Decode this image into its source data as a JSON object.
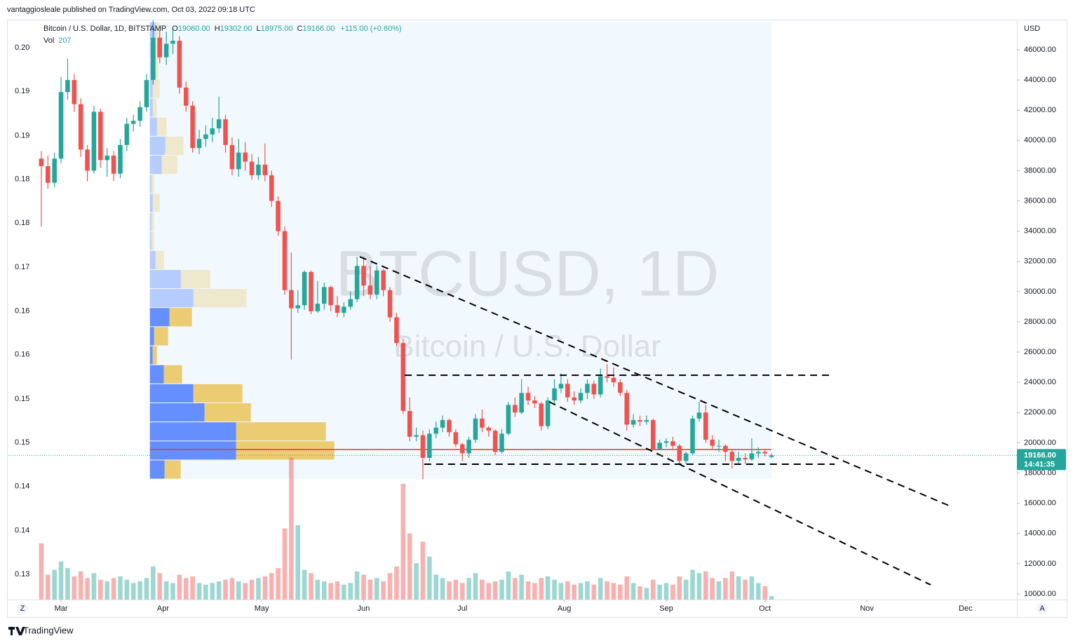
{
  "header": {
    "published": "vantaggiosleale published on TradingView.com, Oct 03, 2022 09:18 UTC",
    "symbol": "Bitcoin / U.S. Dollar, 1D, BITSTAMP",
    "ohlc": [
      {
        "key": "O",
        "value": "19060.00"
      },
      {
        "key": "H",
        "value": "19302.00"
      },
      {
        "key": "L",
        "value": "18975.00"
      },
      {
        "key": "C",
        "value": "19166.00"
      }
    ],
    "change": "+115.00 (+0.60%)"
  },
  "footer": {
    "brand": "TradingView",
    "left_button": "Z",
    "right_button": "A"
  },
  "chart_data": {
    "type": "candlestick",
    "watermark": "BTCUSD, 1D",
    "watermark_sub": "Bitcoin / U.S. Dollar",
    "currency": "USD",
    "volume_label": "Vol",
    "up_color": "#26a69a",
    "down_color": "#ef5350",
    "xlim": [
      44.0,
      350.6
    ],
    "xticks": [
      {
        "value": 60,
        "label": "Mar"
      },
      {
        "value": 91,
        "label": "Apr"
      },
      {
        "value": 121,
        "label": "May"
      },
      {
        "value": 152,
        "label": "Jun"
      },
      {
        "value": 182,
        "label": "Jul"
      },
      {
        "value": 213,
        "label": "Aug"
      },
      {
        "value": 244,
        "label": "Sep"
      },
      {
        "value": 274,
        "label": "Oct"
      },
      {
        "value": 305,
        "label": "Nov"
      },
      {
        "value": 335,
        "label": "Dec"
      }
    ],
    "ylim": [
      9629,
      47902
    ],
    "yticks": [
      {
        "value": 10000,
        "label": "10000.00"
      },
      {
        "value": 12000,
        "label": "12000.00"
      },
      {
        "value": 14000,
        "label": "14000.00"
      },
      {
        "value": 16000,
        "label": "16000.00"
      },
      {
        "value": 18000,
        "label": "18000.00"
      },
      {
        "value": 20000,
        "label": "20000.00"
      },
      {
        "value": 22000,
        "label": "22000.00"
      },
      {
        "value": 24000,
        "label": "24000.00"
      },
      {
        "value": 26000,
        "label": "26000.00"
      },
      {
        "value": 28000,
        "label": "28000.00"
      },
      {
        "value": 30000,
        "label": "30000.00"
      },
      {
        "value": 32000,
        "label": "32000.00"
      },
      {
        "value": 34000,
        "label": "34000.00"
      },
      {
        "value": 36000,
        "label": "36000.00"
      },
      {
        "value": 38000,
        "label": "38000.00"
      },
      {
        "value": 40000,
        "label": "40000.00"
      },
      {
        "value": 42000,
        "label": "42000.00"
      },
      {
        "value": 44000,
        "label": "44000.00"
      },
      {
        "value": 46000,
        "label": "46000.00"
      }
    ],
    "y2lim": [
      0.12664,
      0.20354
    ],
    "y2ticks": [
      {
        "value": 0.2,
        "label": "0.20"
      },
      {
        "value": 0.1942,
        "label": "0.19"
      },
      {
        "value": 0.1883,
        "label": "0.19"
      },
      {
        "value": 0.1825,
        "label": "0.18"
      },
      {
        "value": 0.1767,
        "label": "0.18"
      },
      {
        "value": 0.1708,
        "label": "0.17"
      },
      {
        "value": 0.165,
        "label": "0.16"
      },
      {
        "value": 0.1592,
        "label": "0.16"
      },
      {
        "value": 0.1533,
        "label": "0.15"
      },
      {
        "value": 0.1475,
        "label": "0.15"
      },
      {
        "value": 0.1417,
        "label": "0.14"
      },
      {
        "value": 0.1358,
        "label": "0.14"
      },
      {
        "value": 0.13,
        "label": "0.13"
      }
    ],
    "vol_lim": [
      0,
      35000
    ],
    "x": [
      54,
      56,
      58,
      60,
      62,
      64,
      66,
      68,
      70,
      72,
      74,
      76,
      78,
      80,
      82,
      84,
      86,
      88,
      90,
      92,
      94,
      96,
      98,
      100,
      102,
      104,
      106,
      108,
      110,
      112,
      114,
      116,
      118,
      120,
      122,
      124,
      126,
      128,
      130,
      132,
      134,
      136,
      138,
      140,
      142,
      144,
      146,
      148,
      150,
      152,
      154,
      156,
      158,
      160,
      162,
      164,
      166,
      168,
      170,
      172,
      174,
      176,
      178,
      180,
      182,
      184,
      186,
      188,
      190,
      192,
      194,
      196,
      198,
      200,
      202,
      204,
      206,
      208,
      210,
      212,
      214,
      216,
      218,
      220,
      222,
      224,
      226,
      228,
      230,
      232,
      234,
      236,
      238,
      240,
      242,
      244,
      246,
      248,
      250,
      252,
      254,
      256,
      258,
      260,
      262,
      264,
      266,
      268,
      270,
      272,
      274,
      276
    ],
    "candles": [
      [
        38800,
        39300,
        34300,
        38300
      ],
      [
        38300,
        39000,
        36800,
        37200
      ],
      [
        37200,
        39200,
        36900,
        38800
      ],
      [
        38800,
        44200,
        38500,
        43200
      ],
      [
        43200,
        45400,
        42700,
        44000
      ],
      [
        44000,
        44400,
        41900,
        42400
      ],
      [
        42400,
        42800,
        38900,
        39400
      ],
      [
        39400,
        39700,
        37300,
        38000
      ],
      [
        38000,
        42300,
        37800,
        41900
      ],
      [
        41900,
        42100,
        38200,
        38700
      ],
      [
        38700,
        39500,
        37600,
        39000
      ],
      [
        39000,
        39300,
        37300,
        37800
      ],
      [
        37800,
        40100,
        37500,
        39700
      ],
      [
        39700,
        41500,
        39300,
        41100
      ],
      [
        41100,
        41700,
        40600,
        41300
      ],
      [
        41300,
        42600,
        40900,
        42200
      ],
      [
        42200,
        44400,
        41900,
        44000
      ],
      [
        44000,
        48100,
        43700,
        46800
      ],
      [
        46800,
        47300,
        45100,
        45500
      ],
      [
        45500,
        47200,
        45000,
        46400
      ],
      [
        46400,
        47400,
        45700,
        46600
      ],
      [
        46600,
        46900,
        43100,
        43500
      ],
      [
        43500,
        43900,
        41900,
        42300
      ],
      [
        42300,
        42600,
        39200,
        39500
      ],
      [
        39500,
        40700,
        39100,
        40100
      ],
      [
        40100,
        41000,
        39600,
        40400
      ],
      [
        40400,
        41500,
        39900,
        40800
      ],
      [
        40800,
        42900,
        40500,
        41400
      ],
      [
        41400,
        41700,
        39200,
        39700
      ],
      [
        39700,
        40200,
        37700,
        38100
      ],
      [
        38100,
        40100,
        37600,
        39200
      ],
      [
        39200,
        39900,
        38000,
        38600
      ],
      [
        38600,
        39100,
        37400,
        37700
      ],
      [
        37700,
        38900,
        37400,
        38400
      ],
      [
        38400,
        39800,
        37300,
        37700
      ],
      [
        37700,
        38000,
        35600,
        36000
      ],
      [
        36000,
        36300,
        33700,
        34000
      ],
      [
        34000,
        34300,
        29800,
        30100
      ],
      [
        30100,
        32600,
        25500,
        28900
      ],
      [
        28900,
        30100,
        28600,
        29100
      ],
      [
        29100,
        31400,
        28800,
        31300
      ],
      [
        31300,
        31400,
        28500,
        28700
      ],
      [
        28700,
        30700,
        28600,
        29200
      ],
      [
        29200,
        30600,
        28800,
        30300
      ],
      [
        30300,
        30400,
        28700,
        29100
      ],
      [
        29100,
        29700,
        28300,
        28600
      ],
      [
        28600,
        29300,
        28300,
        29000
      ],
      [
        29000,
        30000,
        28800,
        29500
      ],
      [
        29500,
        32300,
        29300,
        31700
      ],
      [
        31700,
        32300,
        29700,
        30400
      ],
      [
        30400,
        31700,
        29500,
        29800
      ],
      [
        29800,
        31700,
        29500,
        31400
      ],
      [
        31400,
        31500,
        29700,
        30100
      ],
      [
        30100,
        30300,
        28000,
        28300
      ],
      [
        28300,
        28600,
        26400,
        26600
      ],
      [
        26600,
        26900,
        21900,
        22100
      ],
      [
        22100,
        23000,
        20100,
        20400
      ],
      [
        20400,
        21000,
        20100,
        20500
      ],
      [
        20500,
        20800,
        17600,
        19000
      ],
      [
        19000,
        20900,
        18800,
        20600
      ],
      [
        20600,
        21400,
        20300,
        21000
      ],
      [
        21000,
        21800,
        20700,
        21500
      ],
      [
        21500,
        21600,
        20400,
        20700
      ],
      [
        20700,
        20900,
        19700,
        19900
      ],
      [
        19900,
        20000,
        18800,
        19300
      ],
      [
        19300,
        20400,
        19000,
        20200
      ],
      [
        20200,
        21900,
        20000,
        21600
      ],
      [
        21600,
        22200,
        20700,
        21000
      ],
      [
        21000,
        21100,
        20400,
        20800
      ],
      [
        20800,
        20900,
        19200,
        19400
      ],
      [
        19400,
        20900,
        19300,
        20600
      ],
      [
        20600,
        22700,
        20500,
        22500
      ],
      [
        22500,
        23000,
        21700,
        22000
      ],
      [
        22000,
        24200,
        21900,
        23300
      ],
      [
        23300,
        23700,
        22500,
        22800
      ],
      [
        22800,
        23100,
        22300,
        22600
      ],
      [
        22600,
        22700,
        20800,
        21100
      ],
      [
        21100,
        23000,
        20900,
        22800
      ],
      [
        22800,
        24200,
        22600,
        23600
      ],
      [
        23600,
        24600,
        23300,
        23900
      ],
      [
        23900,
        24200,
        22700,
        23000
      ],
      [
        23000,
        23400,
        22500,
        22800
      ],
      [
        22800,
        23600,
        22600,
        23300
      ],
      [
        23300,
        24200,
        22900,
        23900
      ],
      [
        23900,
        24100,
        22900,
        23200
      ],
      [
        23200,
        24900,
        23000,
        24400
      ],
      [
        24400,
        25200,
        24000,
        24300
      ],
      [
        24300,
        25000,
        23700,
        24000
      ],
      [
        24000,
        24200,
        23100,
        23300
      ],
      [
        23300,
        23500,
        20800,
        21200
      ],
      [
        21200,
        21900,
        21000,
        21500
      ],
      [
        21500,
        21800,
        21100,
        21400
      ],
      [
        21400,
        21800,
        21200,
        21500
      ],
      [
        21500,
        21600,
        19500,
        19600
      ],
      [
        19600,
        20200,
        19500,
        20000
      ],
      [
        20000,
        20300,
        19700,
        20100
      ],
      [
        20100,
        20400,
        19600,
        19800
      ],
      [
        19800,
        19900,
        18600,
        18800
      ],
      [
        18800,
        19400,
        18600,
        19300
      ],
      [
        19300,
        21800,
        19200,
        21600
      ],
      [
        21600,
        22700,
        21400,
        22000
      ],
      [
        22000,
        22500,
        20000,
        20200
      ],
      [
        20200,
        20500,
        19600,
        19800
      ],
      [
        19800,
        20200,
        19400,
        19800
      ],
      [
        19800,
        19900,
        18800,
        19400
      ],
      [
        19400,
        19600,
        18300,
        18800
      ],
      [
        18800,
        19400,
        18600,
        19000
      ],
      [
        19000,
        19300,
        18600,
        18900
      ],
      [
        18900,
        20300,
        18800,
        19300
      ],
      [
        19300,
        19700,
        19000,
        19400
      ],
      [
        19400,
        19500,
        19100,
        19300
      ],
      [
        19060,
        19302,
        18975,
        19166
      ]
    ],
    "volume": [
      3400,
      1500,
      1800,
      2300,
      1900,
      1400,
      1700,
      1300,
      1600,
      1200,
      1100,
      1300,
      1400,
      1200,
      1000,
      1100,
      1300,
      2000,
      1600,
      1100,
      1000,
      1500,
      1300,
      1400,
      1000,
      900,
      1000,
      1100,
      1200,
      1300,
      1100,
      1000,
      1200,
      1300,
      1400,
      1600,
      1900,
      4300,
      8600,
      4500,
      1800,
      1600,
      1200,
      1100,
      1000,
      1100,
      900,
      1000,
      1700,
      1500,
      1200,
      1300,
      1100,
      1600,
      2000,
      7000,
      4000,
      2200,
      3500,
      2600,
      1500,
      1300,
      1100,
      1200,
      1000,
      1300,
      1600,
      1200,
      1000,
      1100,
      1200,
      1700,
      1300,
      1500,
      1100,
      1000,
      1300,
      1400,
      1200,
      1000,
      1100,
      900,
      1000,
      1100,
      900,
      1300,
      1100,
      1000,
      900,
      1400,
      1000,
      800,
      700,
      1200,
      900,
      1000,
      900,
      1400,
      1200,
      1800,
      1600,
      1700,
      1300,
      1100,
      1300,
      1700,
      1400,
      1200,
      1400,
      1000,
      800,
      207
    ],
    "profile": {
      "range": [
        87,
        276
      ],
      "bins": [
        17600,
        18860,
        20120,
        21380,
        22640,
        23900,
        25160,
        26420,
        27680,
        28940,
        30200,
        31460,
        32720,
        33980,
        35240,
        36500,
        37760,
        39020,
        40280,
        41540,
        42800,
        44060,
        45320,
        46580,
        47840
      ],
      "up": [
        21,
        123,
        123,
        78,
        62,
        20,
        4,
        6,
        28,
        62,
        44,
        8,
        2,
        2,
        4,
        2,
        17,
        22,
        10,
        4,
        4,
        4,
        6,
        8
      ],
      "down": [
        23,
        140,
        128,
        66,
        70,
        26,
        6,
        20,
        32,
        76,
        42,
        12,
        4,
        4,
        10,
        4,
        22,
        26,
        14,
        6,
        10,
        8,
        8,
        6
      ],
      "value_area": [
        17600,
        28940
      ],
      "poc": 19550
    },
    "drawings": [
      {
        "from": [
          150.8,
          32310
        ],
        "to": [
          330.4,
          15800
        ]
      },
      {
        "from": [
          208.4,
          22710
        ],
        "to": [
          324.4,
          10600
        ]
      },
      {
        "from": [
          164.5,
          24470
        ],
        "to": [
          294.1,
          24470
        ]
      },
      {
        "from": [
          170.4,
          18580
        ],
        "to": [
          295.2,
          18580
        ]
      }
    ],
    "last_price": {
      "value": 19166,
      "label": "19166.00"
    },
    "countdown": "14:41:35"
  }
}
